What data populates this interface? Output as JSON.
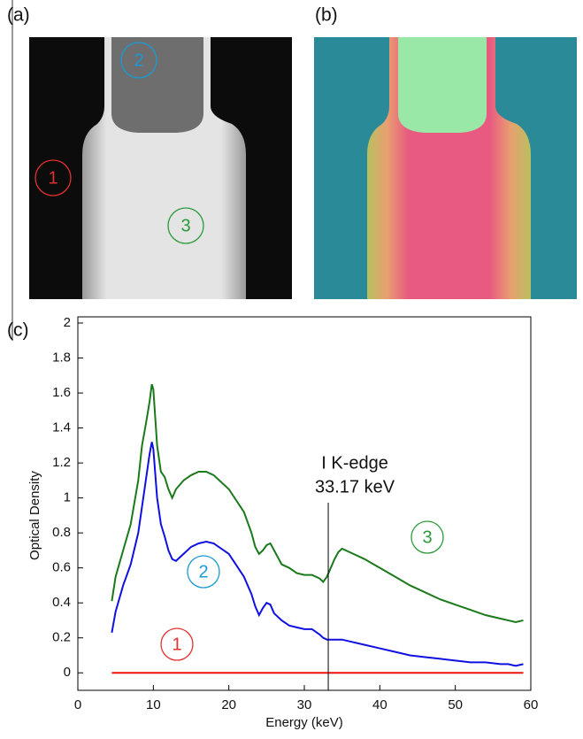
{
  "panels": {
    "a": {
      "label": "(a)",
      "markers": [
        "1",
        "2",
        "3"
      ]
    },
    "b": {
      "label": "(b)"
    },
    "c": {
      "label": "(c)"
    }
  },
  "chart_data": {
    "type": "line",
    "xlabel": "Energy (keV)",
    "ylabel": "Optical Density",
    "xlim": [
      0,
      60
    ],
    "xticks": [
      0,
      10,
      20,
      30,
      40,
      50,
      60
    ],
    "ylim": [
      -0.1,
      2
    ],
    "yticks": [
      0,
      0.2,
      0.4,
      0.6,
      0.8,
      1,
      1.2,
      1.4,
      1.6,
      1.8,
      2
    ],
    "x": [
      4.5,
      5,
      6,
      7,
      8,
      8.5,
      9,
      9.5,
      9.8,
      10,
      10.5,
      11,
      11.5,
      12,
      12.5,
      13,
      14,
      15,
      16,
      17,
      18,
      20,
      22,
      23,
      23.5,
      24,
      24.5,
      25,
      25.5,
      26,
      27,
      28,
      29,
      30,
      31,
      32,
      32.5,
      33,
      33.5,
      34,
      34.5,
      35,
      36,
      38,
      40,
      42,
      44,
      46,
      48,
      50,
      52,
      54,
      56,
      57,
      58,
      59
    ],
    "series": [
      {
        "name": "3",
        "color": "#1a7a1a",
        "label_color": "#2a9a3a",
        "values": [
          0.41,
          0.55,
          0.7,
          0.85,
          1.1,
          1.3,
          1.42,
          1.55,
          1.65,
          1.62,
          1.3,
          1.15,
          1.12,
          1.05,
          1.0,
          1.05,
          1.1,
          1.13,
          1.15,
          1.15,
          1.13,
          1.05,
          0.92,
          0.8,
          0.72,
          0.68,
          0.7,
          0.73,
          0.74,
          0.7,
          0.62,
          0.6,
          0.57,
          0.56,
          0.56,
          0.54,
          0.52,
          0.55,
          0.6,
          0.65,
          0.69,
          0.71,
          0.69,
          0.65,
          0.6,
          0.55,
          0.5,
          0.46,
          0.42,
          0.39,
          0.36,
          0.33,
          0.31,
          0.3,
          0.29,
          0.3
        ]
      },
      {
        "name": "2",
        "color": "#1010e0",
        "label_color": "#1a9ad6",
        "values": [
          0.23,
          0.35,
          0.5,
          0.62,
          0.8,
          0.95,
          1.1,
          1.25,
          1.32,
          1.28,
          1.0,
          0.85,
          0.78,
          0.7,
          0.65,
          0.64,
          0.68,
          0.72,
          0.74,
          0.75,
          0.74,
          0.68,
          0.55,
          0.45,
          0.38,
          0.33,
          0.37,
          0.4,
          0.39,
          0.34,
          0.3,
          0.27,
          0.26,
          0.25,
          0.25,
          0.22,
          0.2,
          0.19,
          0.19,
          0.19,
          0.19,
          0.19,
          0.18,
          0.16,
          0.14,
          0.12,
          0.1,
          0.09,
          0.08,
          0.07,
          0.06,
          0.06,
          0.05,
          0.05,
          0.04,
          0.05
        ]
      },
      {
        "name": "1",
        "color": "#ee1111",
        "label_color": "#e03030",
        "x": [
          4.5,
          59
        ],
        "values": [
          0,
          0
        ]
      }
    ],
    "kedge": {
      "x": 33.17,
      "label": "I K-edge",
      "value_label": "33.17 keV"
    }
  }
}
